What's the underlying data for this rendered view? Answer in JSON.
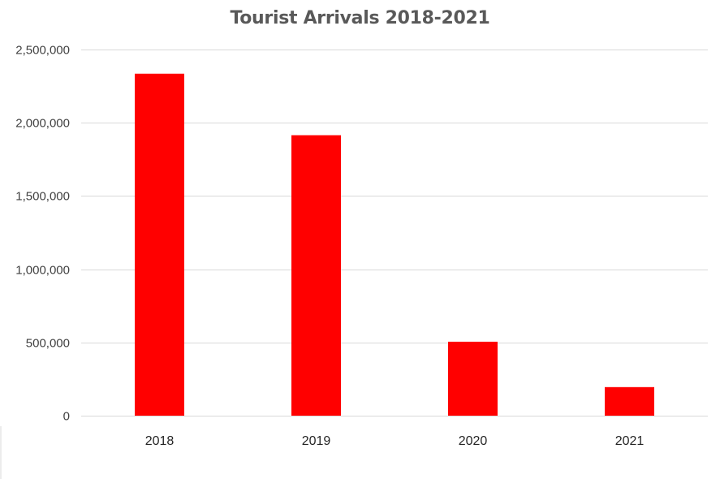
{
  "chart_data": {
    "type": "bar",
    "title": "Tourist Arrivals 2018-2021",
    "categories": [
      "2018",
      "2019",
      "2020",
      "2021"
    ],
    "values": [
      2335000,
      1915000,
      505000,
      195000
    ],
    "ylim": [
      0,
      2500000
    ],
    "yticks": [
      0,
      500000,
      1000000,
      1500000,
      2000000,
      2500000
    ],
    "ytick_labels": [
      "0",
      "500,000",
      "1,000,000",
      "1,500,000",
      "2,000,000",
      "2,500,000"
    ],
    "xlabel": "",
    "ylabel": "",
    "grid": true,
    "legend": "none",
    "bar_color": "#FF0000",
    "grid_color": "#D9D9D9"
  }
}
